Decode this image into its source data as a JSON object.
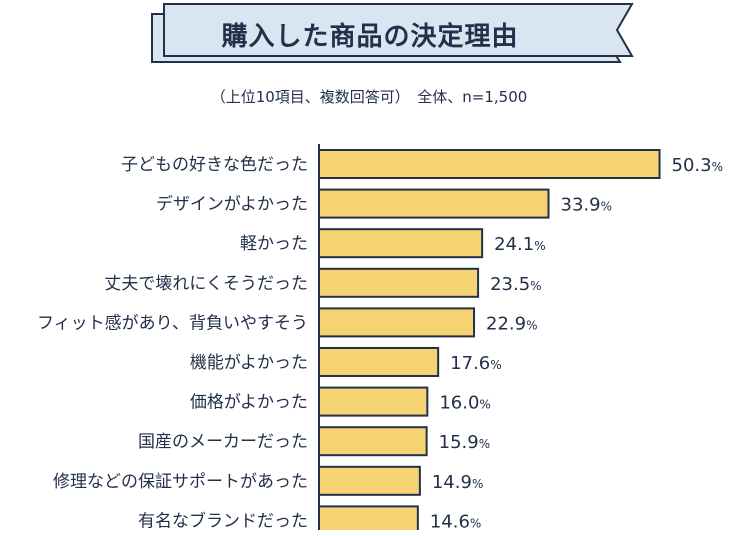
{
  "header": {
    "title": "購入した商品の決定理由",
    "subtitle": "（上位10項目、複数回答可）　全体、n=1,500"
  },
  "colors": {
    "bar_fill": "#f6d372",
    "bar_stroke": "#23304a",
    "banner_fill": "#d9e6f1",
    "text": "#23304a"
  },
  "chart_data": {
    "type": "bar",
    "orientation": "horizontal",
    "unit": "%",
    "categories": [
      "子どもの好きな色だった",
      "デザインがよかった",
      "軽かった",
      "丈夫で壊れにくそうだった",
      "フィット感があり、背負いやすそう",
      "機能がよかった",
      "価格がよかった",
      "国産のメーカーだった",
      "修理などの保証サポートがあった",
      "有名なブランドだった"
    ],
    "values": [
      50.3,
      33.9,
      24.1,
      23.5,
      22.9,
      17.6,
      16.0,
      15.9,
      14.9,
      14.6
    ],
    "value_labels": [
      "50.3",
      "33.9",
      "24.1",
      "23.5",
      "22.9",
      "17.6",
      "16.0",
      "15.9",
      "14.9",
      "14.6"
    ]
  }
}
